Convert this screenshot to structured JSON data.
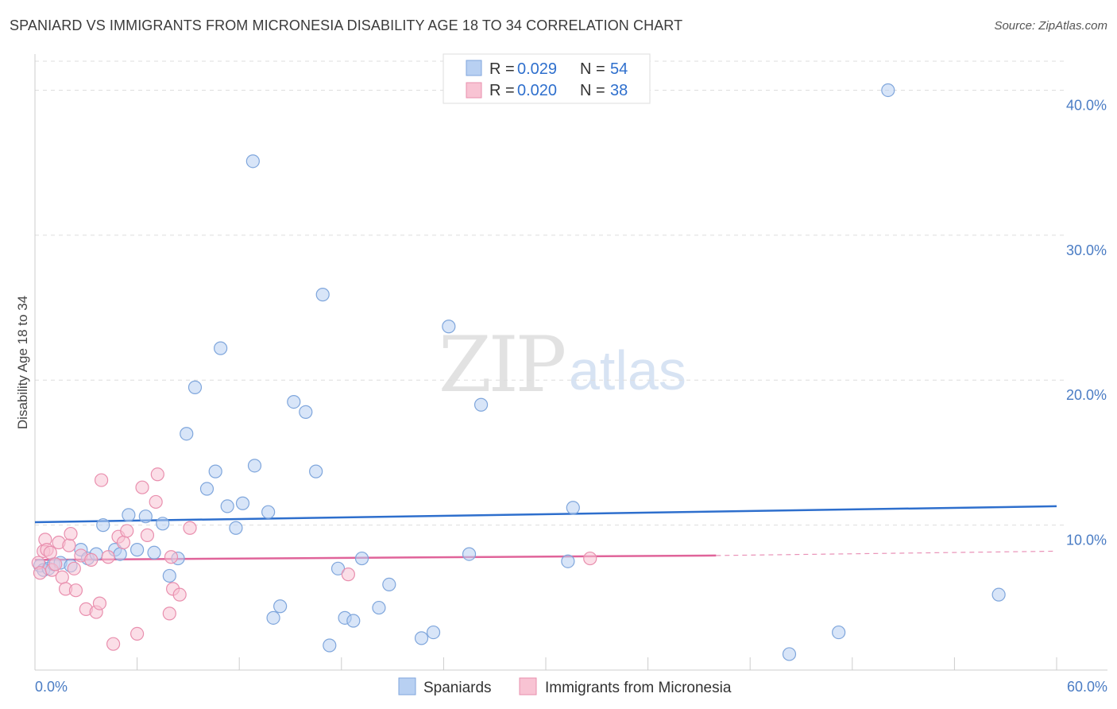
{
  "title": "SPANIARD VS IMMIGRANTS FROM MICRONESIA DISABILITY AGE 18 TO 34 CORRELATION CHART",
  "source": "Source: ZipAtlas.com",
  "watermark": {
    "part1": "ZIP",
    "part2": "atlas"
  },
  "colors": {
    "blue_fill": "#b8d0f2",
    "blue_stroke": "#7fa6dc",
    "blue_line": "#2e6fcd",
    "pink_fill": "#f8c3d3",
    "pink_stroke": "#e98fae",
    "pink_line": "#e0649a",
    "grid": "#dddddd",
    "tick_label": "#4a7cc4"
  },
  "legend": [
    {
      "r_label": "R =",
      "r_value": "0.029",
      "n_label": "N =",
      "n_value": "54"
    },
    {
      "r_label": "R =",
      "r_value": "0.020",
      "n_label": "N =",
      "n_value": "38"
    }
  ],
  "chart_data": {
    "type": "scatter",
    "title": "SPANIARD VS IMMIGRANTS FROM MICRONESIA DISABILITY AGE 18 TO 34 CORRELATION CHART",
    "ylabel": "Disability Age 18 to 34",
    "xlabel": "",
    "xlim": [
      0,
      60
    ],
    "ylim": [
      0,
      42
    ],
    "x_tick_labels": [
      "0.0%",
      "60.0%"
    ],
    "y_ticks": [
      10,
      20,
      30,
      40
    ],
    "y_tick_labels": [
      "10.0%",
      "20.0%",
      "30.0%",
      "40.0%"
    ],
    "grid": true,
    "legend_position": "top-center",
    "series": [
      {
        "name": "Spaniards",
        "color": "#b8d0f2",
        "trend": {
          "x": [
            0,
            60
          ],
          "y": [
            10.2,
            11.3
          ]
        },
        "points": [
          {
            "x": 0.3,
            "y": 7.2
          },
          {
            "x": 0.5,
            "y": 6.9
          },
          {
            "x": 0.8,
            "y": 7.0
          },
          {
            "x": 1.1,
            "y": 7.3
          },
          {
            "x": 1.5,
            "y": 7.4
          },
          {
            "x": 2.1,
            "y": 7.2
          },
          {
            "x": 2.7,
            "y": 8.3
          },
          {
            "x": 3.1,
            "y": 7.7
          },
          {
            "x": 3.6,
            "y": 8.0
          },
          {
            "x": 4.0,
            "y": 10.0
          },
          {
            "x": 4.7,
            "y": 8.3
          },
          {
            "x": 5.0,
            "y": 8.0
          },
          {
            "x": 5.5,
            "y": 10.7
          },
          {
            "x": 6.0,
            "y": 8.3
          },
          {
            "x": 6.5,
            "y": 10.6
          },
          {
            "x": 7.0,
            "y": 8.1
          },
          {
            "x": 7.5,
            "y": 10.1
          },
          {
            "x": 7.9,
            "y": 6.5
          },
          {
            "x": 8.4,
            "y": 7.7
          },
          {
            "x": 8.9,
            "y": 16.3
          },
          {
            "x": 9.4,
            "y": 19.5
          },
          {
            "x": 10.1,
            "y": 12.5
          },
          {
            "x": 10.6,
            "y": 13.7
          },
          {
            "x": 10.9,
            "y": 22.2
          },
          {
            "x": 11.3,
            "y": 11.3
          },
          {
            "x": 11.8,
            "y": 9.8
          },
          {
            "x": 12.2,
            "y": 11.5
          },
          {
            "x": 12.8,
            "y": 35.1
          },
          {
            "x": 12.9,
            "y": 14.1
          },
          {
            "x": 13.7,
            "y": 10.9
          },
          {
            "x": 14.0,
            "y": 3.6
          },
          {
            "x": 14.4,
            "y": 4.4
          },
          {
            "x": 15.2,
            "y": 18.5
          },
          {
            "x": 15.9,
            "y": 17.8
          },
          {
            "x": 16.5,
            "y": 13.7
          },
          {
            "x": 16.9,
            "y": 25.9
          },
          {
            "x": 17.3,
            "y": 1.7
          },
          {
            "x": 17.8,
            "y": 7.0
          },
          {
            "x": 18.2,
            "y": 3.6
          },
          {
            "x": 18.7,
            "y": 3.4
          },
          {
            "x": 19.2,
            "y": 7.7
          },
          {
            "x": 20.2,
            "y": 4.3
          },
          {
            "x": 20.8,
            "y": 5.9
          },
          {
            "x": 22.7,
            "y": 2.2
          },
          {
            "x": 23.4,
            "y": 2.6
          },
          {
            "x": 24.3,
            "y": 23.7
          },
          {
            "x": 25.5,
            "y": 8.0
          },
          {
            "x": 26.2,
            "y": 18.3
          },
          {
            "x": 31.3,
            "y": 7.5
          },
          {
            "x": 31.6,
            "y": 11.2
          },
          {
            "x": 44.3,
            "y": 1.1
          },
          {
            "x": 47.2,
            "y": 2.6
          },
          {
            "x": 50.1,
            "y": 40.0
          },
          {
            "x": 56.6,
            "y": 5.2
          }
        ]
      },
      {
        "name": "Immigrants from Micronesia",
        "color": "#f8c3d3",
        "trend": {
          "x": [
            0,
            40
          ],
          "y": [
            7.6,
            7.9
          ]
        },
        "trend_dashed": {
          "x": [
            40,
            60
          ],
          "y": [
            7.9,
            8.2
          ]
        },
        "points": [
          {
            "x": 0.2,
            "y": 7.4
          },
          {
            "x": 0.3,
            "y": 6.7
          },
          {
            "x": 0.5,
            "y": 8.2
          },
          {
            "x": 0.6,
            "y": 9.0
          },
          {
            "x": 0.7,
            "y": 8.3
          },
          {
            "x": 0.9,
            "y": 8.1
          },
          {
            "x": 1.0,
            "y": 6.9
          },
          {
            "x": 1.2,
            "y": 7.3
          },
          {
            "x": 1.4,
            "y": 8.8
          },
          {
            "x": 1.6,
            "y": 6.4
          },
          {
            "x": 1.8,
            "y": 5.6
          },
          {
            "x": 2.0,
            "y": 8.6
          },
          {
            "x": 2.1,
            "y": 9.4
          },
          {
            "x": 2.3,
            "y": 7.0
          },
          {
            "x": 2.4,
            "y": 5.5
          },
          {
            "x": 2.7,
            "y": 7.9
          },
          {
            "x": 3.0,
            "y": 4.2
          },
          {
            "x": 3.3,
            "y": 7.6
          },
          {
            "x": 3.6,
            "y": 4.0
          },
          {
            "x": 3.8,
            "y": 4.6
          },
          {
            "x": 3.9,
            "y": 13.1
          },
          {
            "x": 4.3,
            "y": 7.8
          },
          {
            "x": 4.6,
            "y": 1.8
          },
          {
            "x": 4.9,
            "y": 9.2
          },
          {
            "x": 5.2,
            "y": 8.8
          },
          {
            "x": 5.4,
            "y": 9.6
          },
          {
            "x": 6.0,
            "y": 2.5
          },
          {
            "x": 6.3,
            "y": 12.6
          },
          {
            "x": 6.6,
            "y": 9.3
          },
          {
            "x": 7.1,
            "y": 11.6
          },
          {
            "x": 7.2,
            "y": 13.5
          },
          {
            "x": 7.9,
            "y": 3.9
          },
          {
            "x": 8.0,
            "y": 7.8
          },
          {
            "x": 8.1,
            "y": 5.6
          },
          {
            "x": 8.5,
            "y": 5.2
          },
          {
            "x": 9.1,
            "y": 9.8
          },
          {
            "x": 18.4,
            "y": 6.6
          },
          {
            "x": 32.6,
            "y": 7.7
          }
        ]
      }
    ]
  }
}
